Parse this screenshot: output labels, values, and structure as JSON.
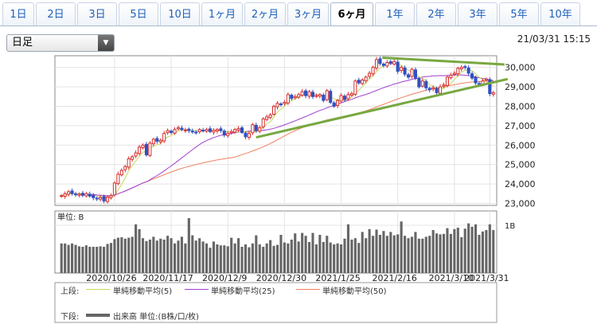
{
  "tabs": [
    "1日",
    "2日",
    "3日",
    "5日",
    "10日",
    "1ヶ月",
    "2ヶ月",
    "3ヶ月",
    "6ヶ月",
    "1年",
    "2年",
    "3年",
    "5年",
    "10年"
  ],
  "active_tab": "6ヶ月",
  "chart_type_select": {
    "value": "日足"
  },
  "timestamp": "21/03/31 15:15",
  "chart_data": {
    "type": "candlestick",
    "y_ticks": [
      "30,000",
      "29,000",
      "28,000",
      "27,000",
      "26,000",
      "25,000",
      "24,000",
      "23,000"
    ],
    "ylim": [
      22900,
      30600
    ],
    "x_labels": [
      "2020/10/26",
      "2020/11/17",
      "2020/12/9",
      "2020/12/30",
      "2021/1/25",
      "2021/2/16",
      "2021/3/10",
      "2021/3/31"
    ],
    "volume_unit_label": "単位: B",
    "volume_tick": "1B",
    "closes": [
      23400,
      23500,
      23600,
      23520,
      23450,
      23480,
      23420,
      23500,
      23380,
      23300,
      23250,
      23310,
      23130,
      23330,
      23400,
      24050,
      24500,
      24700,
      24900,
      25300,
      25400,
      25600,
      25900,
      26000,
      25500,
      26100,
      26300,
      26200,
      26250,
      26600,
      26750,
      26650,
      26800,
      26900,
      26800,
      26780,
      26750,
      26700,
      26650,
      26800,
      26750,
      26800,
      26700,
      26760,
      26800,
      26750,
      26520,
      26600,
      26700,
      26800,
      26850,
      26650,
      26430,
      26600,
      27050,
      26750,
      26900,
      27350,
      27450,
      27550,
      28000,
      28150,
      28100,
      28200,
      28600,
      28400,
      28500,
      28600,
      28750,
      28550,
      28750,
      28500,
      28550,
      28600,
      28300,
      28800,
      28200,
      28000,
      28300,
      28550,
      28350,
      28600,
      28650,
      29300,
      29200,
      29350,
      29500,
      29700,
      30000,
      30400,
      30200,
      30100,
      30250,
      30200,
      30300,
      29800,
      30000,
      29650,
      29500,
      29900,
      29450,
      29000,
      29300,
      28950,
      28850,
      28950,
      28700,
      29000,
      29100,
      29500,
      29600,
      29700,
      29950,
      30000,
      30000,
      29700,
      29450,
      29200,
      29150,
      29300,
      29400,
      28650,
      28700
    ],
    "volumes": [
      0.62,
      0.62,
      0.59,
      0.62,
      0.59,
      0.56,
      0.55,
      0.58,
      0.55,
      0.55,
      0.55,
      0.56,
      0.55,
      0.61,
      0.63,
      0.71,
      0.74,
      0.75,
      0.72,
      0.74,
      0.76,
      1.02,
      0.92,
      0.73,
      0.67,
      0.7,
      0.76,
      0.68,
      0.72,
      0.7,
      0.78,
      0.73,
      0.62,
      0.68,
      0.76,
      0.62,
      1.15,
      0.79,
      0.68,
      0.73,
      0.66,
      0.62,
      0.53,
      0.66,
      0.6,
      0.58,
      0.58,
      0.56,
      0.74,
      0.62,
      0.73,
      0.55,
      0.6,
      0.54,
      0.62,
      0.79,
      0.6,
      0.55,
      0.62,
      0.69,
      0.57,
      0.59,
      0.8,
      0.64,
      0.62,
      0.7,
      0.83,
      0.66,
      0.84,
      0.78,
      0.65,
      0.84,
      0.6,
      0.8,
      0.65,
      0.78,
      0.64,
      0.6,
      0.62,
      0.6,
      0.72,
      1.02,
      0.7,
      0.73,
      0.63,
      0.86,
      0.73,
      0.92,
      0.78,
      0.91,
      0.8,
      0.88,
      0.78,
      0.86,
      0.79,
      0.81,
      1.08,
      0.78,
      0.73,
      0.76,
      0.86,
      0.72,
      0.72,
      0.76,
      0.78,
      0.9,
      0.83,
      0.81,
      0.82,
      0.94,
      0.82,
      0.92,
      0.95,
      0.75,
      0.93,
      1.04,
      0.97,
      1.02,
      0.8,
      0.87,
      0.9,
      1.02,
      0.9
    ],
    "sma_marker": {
      "label": "単純移動平均",
      "from_value": 29350
    }
  },
  "legend": {
    "upper_label": "上段:",
    "lower_label": "下段:",
    "ma5": {
      "name": "単純移動平均(5)",
      "color": "#c5d860"
    },
    "ma25": {
      "name": "単純移動平均(25)",
      "color": "#a040d0"
    },
    "ma50": {
      "name": "単純移動平均(50)",
      "color": "#f08060"
    },
    "volume": {
      "name": "出来高 単位:(B株/口/枚)",
      "color": "#666666"
    }
  },
  "colors": {
    "up": "#d83030",
    "down": "#3050c0",
    "trendline": "#78a840"
  }
}
